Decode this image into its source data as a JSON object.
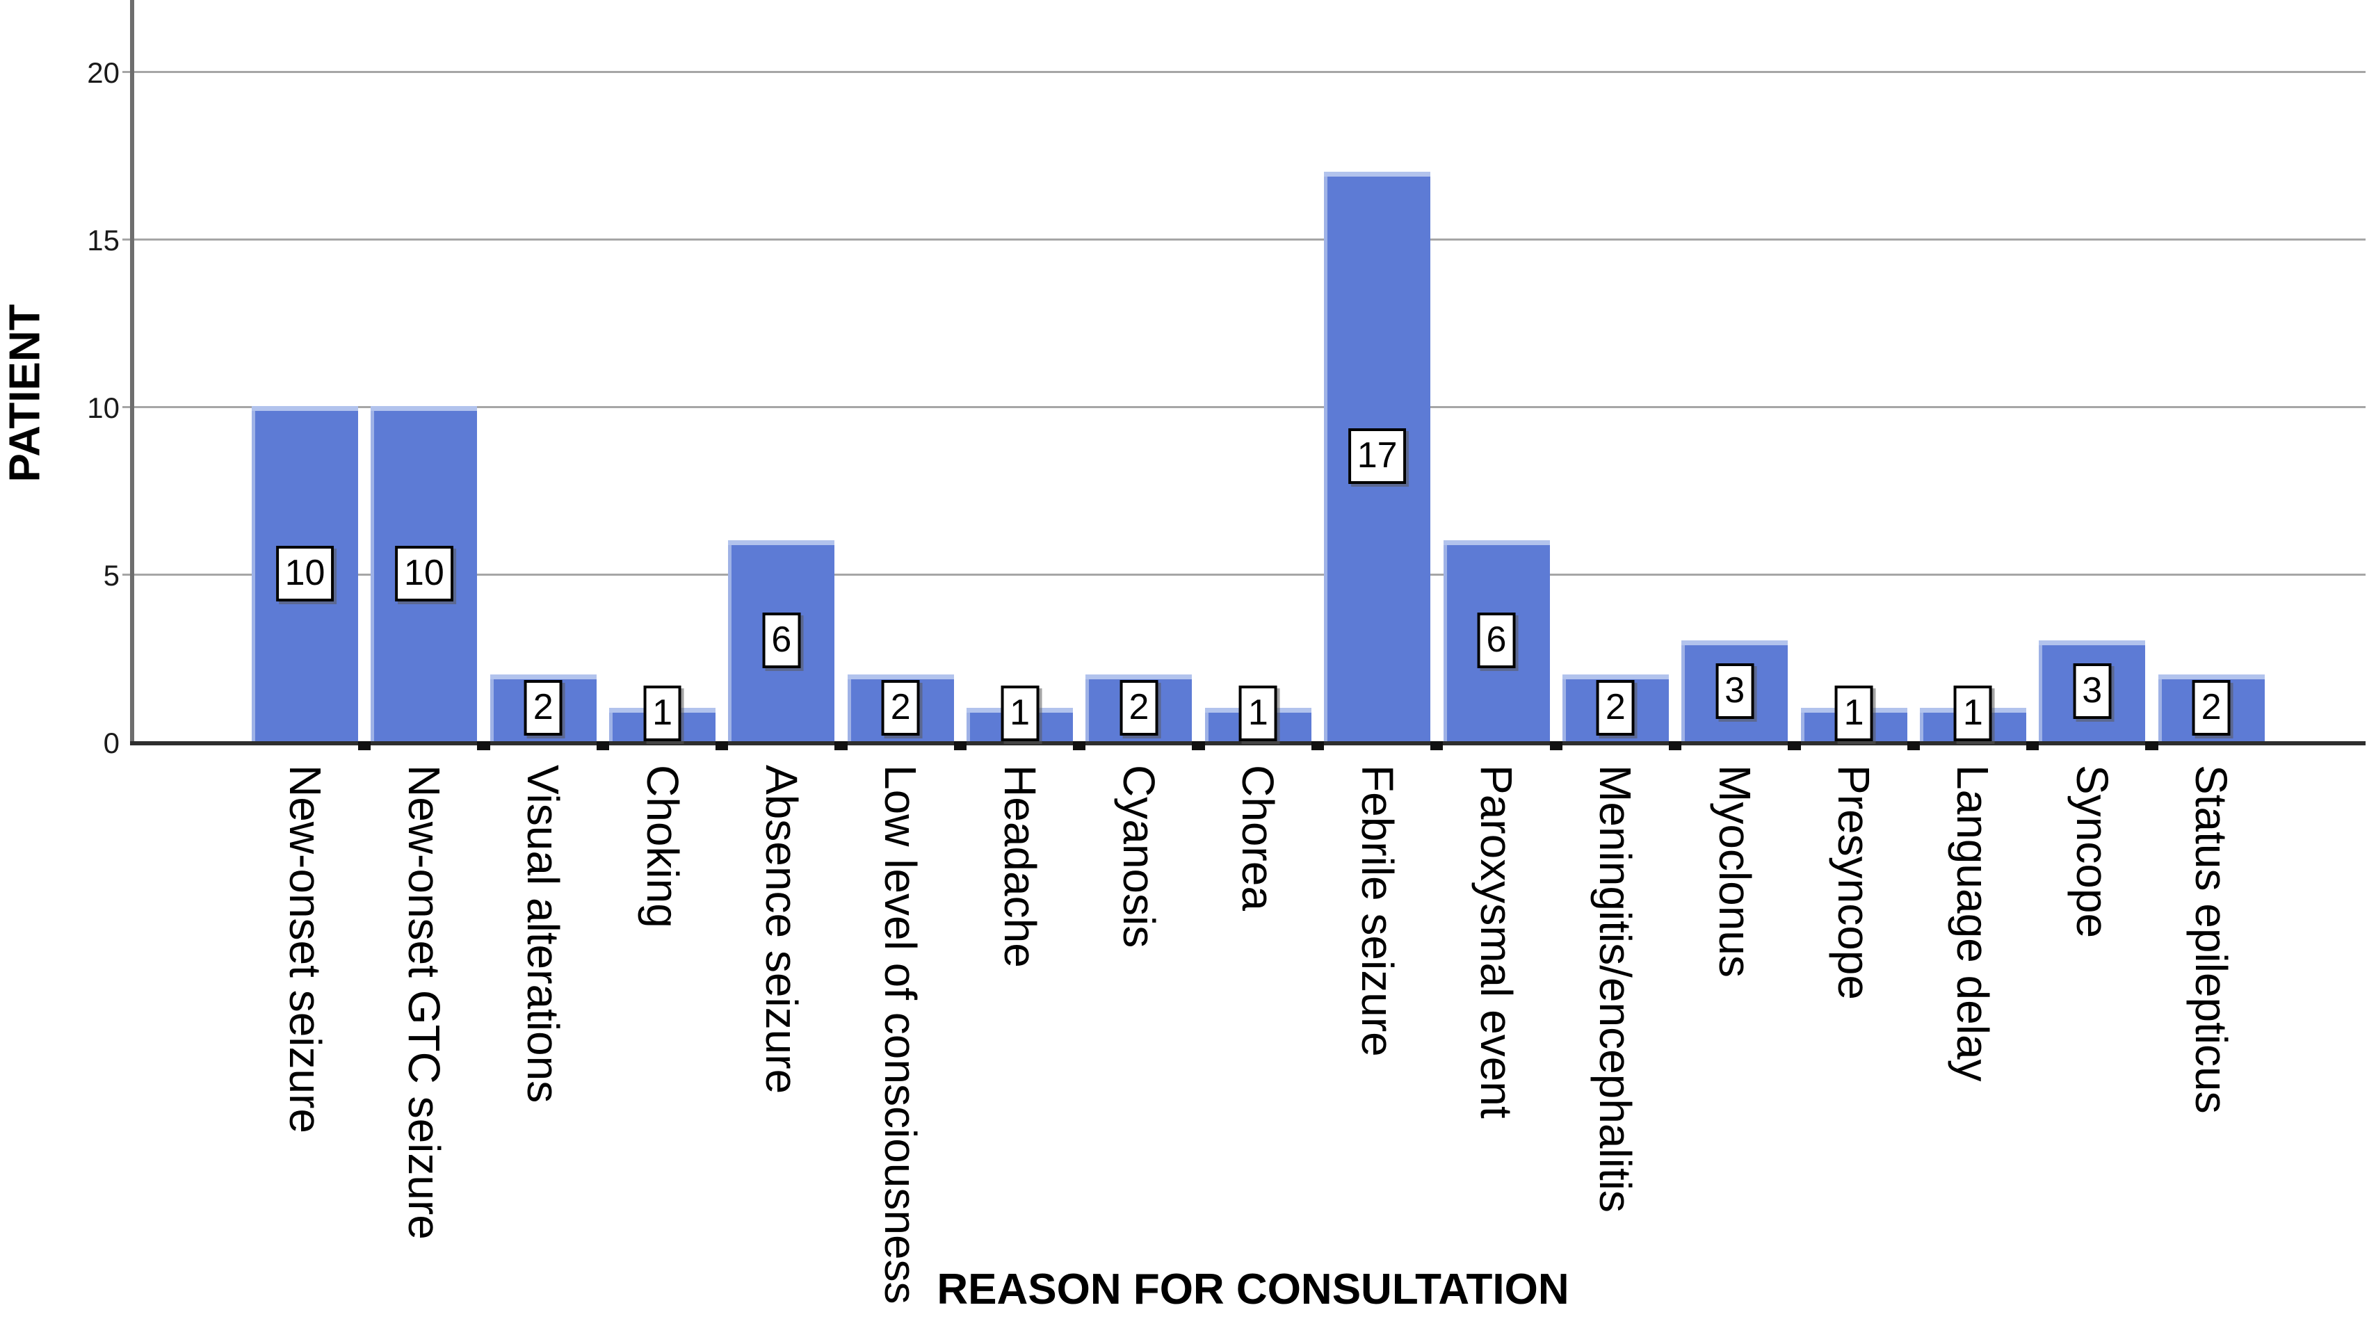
{
  "figure": {
    "y_axis_title": "PATIENT",
    "x_axis_title": "REASON FOR CONSULTATION"
  },
  "chart_data": {
    "type": "bar",
    "title": "",
    "xlabel": "REASON FOR CONSULTATION",
    "ylabel": "PATIENT",
    "categories": [
      "New-onset seizure",
      "New-onset GTC seizure",
      "Visual alterations",
      "Choking",
      "Absence seizure",
      "Low level of consciousness",
      "Headache",
      "Cyanosis",
      "Chorea",
      "Febrile seizure",
      "Paroxysmal event",
      "Meningitis/encephalitis",
      "Myoclonus",
      "Presyncope",
      "Language delay",
      "Syncope",
      "Status epilepticus"
    ],
    "values": [
      10,
      10,
      2,
      1,
      6,
      2,
      1,
      2,
      1,
      17,
      6,
      2,
      3,
      1,
      1,
      3,
      2
    ],
    "value_labels_shown": true,
    "yticks": [
      0,
      5,
      10,
      15,
      20
    ],
    "ytick_labels": [
      "0",
      "5",
      "10",
      "15",
      "20"
    ],
    "ylim": [
      0,
      22
    ],
    "grid": true,
    "legend": "none",
    "bar_color": "#5d7bd5",
    "bar_top_highlight_color": "#b2c3ed",
    "bar_left_highlight_color": "#9fb2e6",
    "gridline_color": "#a6a6a6",
    "y_axis_line_color": "#6e6e6e",
    "x_axis_line_color": "#2e2e2e",
    "value_badge_bg": "#ffffff",
    "value_badge_border": "#000000"
  }
}
